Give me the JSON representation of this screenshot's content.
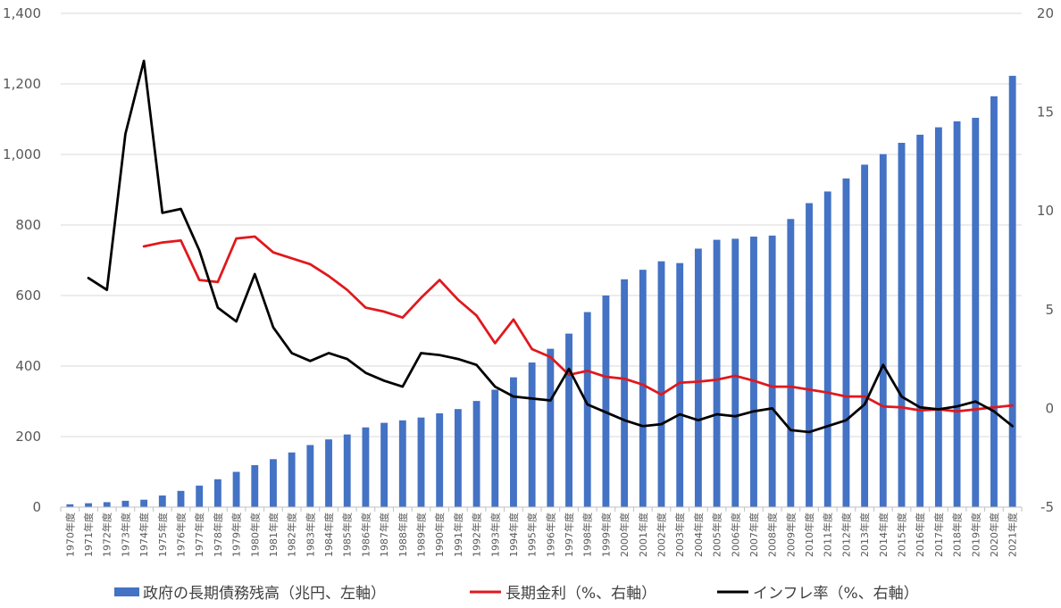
{
  "chart_data": {
    "type": "bar",
    "categories": [
      "1970年度",
      "1971年度",
      "1972年度",
      "1973年度",
      "1974年度",
      "1975年度",
      "1976年度",
      "1977年度",
      "1978年度",
      "1979年度",
      "1980年度",
      "1981年度",
      "1982年度",
      "1983年度",
      "1984年度",
      "1985年度",
      "1986年度",
      "1987年度",
      "1988年度",
      "1989年度",
      "1990年度",
      "1991年度",
      "1992年度",
      "1993年度",
      "1994年度",
      "1995年度",
      "1996年度",
      "1997年度",
      "1998年度",
      "1999年度",
      "2000年度",
      "2001年度",
      "2002年度",
      "2003年度",
      "2004年度",
      "2005年度",
      "2006年度",
      "2007年度",
      "2008年度",
      "2009年度",
      "2010年度",
      "2011年度",
      "2012年度",
      "2013年度",
      "2014年度",
      "2015年度",
      "2016年度",
      "2017年度",
      "2018年度",
      "2019年度",
      "2020年度",
      "2021年度"
    ],
    "left_axis": {
      "ylim": [
        0,
        1400
      ],
      "ticks": [
        "0",
        "200",
        "400",
        "600",
        "800",
        "1,000",
        "1,200",
        "1,400"
      ]
    },
    "right_axis": {
      "ylim": [
        -5,
        20
      ],
      "ticks": [
        "-5",
        "0",
        "5",
        "10",
        "15",
        "20"
      ]
    },
    "grid": true,
    "legend_position": "bottom",
    "series": [
      {
        "name": "政府の長期債務残高（兆円、左軸）",
        "type": "bar",
        "axis": "left",
        "color": "#4472C4",
        "values": [
          8,
          11,
          14,
          18,
          21,
          33,
          46,
          61,
          79,
          100,
          119,
          136,
          155,
          176,
          192,
          206,
          226,
          239,
          246,
          254,
          266,
          278,
          301,
          333,
          368,
          410,
          449,
          492,
          553,
          600,
          646,
          673,
          697,
          692,
          733,
          758,
          761,
          767,
          770,
          817,
          862,
          895,
          932,
          971,
          1001,
          1033,
          1056,
          1077,
          1094,
          1104,
          1165,
          1223
        ]
      },
      {
        "name": "長期金利（%、右軸）",
        "type": "line",
        "axis": "right",
        "color": "#E0181D",
        "values": [
          null,
          null,
          null,
          null,
          8.2,
          8.4,
          8.5,
          6.5,
          6.4,
          8.6,
          8.7,
          7.9,
          7.6,
          7.3,
          6.7,
          6.0,
          5.1,
          4.9,
          4.6,
          5.6,
          6.5,
          5.5,
          4.7,
          3.3,
          4.5,
          3.0,
          2.6,
          1.7,
          1.9,
          1.6,
          1.5,
          1.2,
          0.7,
          1.3,
          1.35,
          1.45,
          1.65,
          1.4,
          1.1,
          1.1,
          0.95,
          0.8,
          0.6,
          0.6,
          0.1,
          0.05,
          -0.1,
          -0.05,
          -0.15,
          -0.05,
          0.05,
          0.15
        ]
      },
      {
        "name": "インフレ率（%、右軸）",
        "type": "line",
        "axis": "right",
        "color": "#000000",
        "values": [
          null,
          6.6,
          6.0,
          13.9,
          17.6,
          9.9,
          10.1,
          8.0,
          5.1,
          4.4,
          6.8,
          4.1,
          2.8,
          2.4,
          2.8,
          2.5,
          1.8,
          1.4,
          1.1,
          2.8,
          2.7,
          2.5,
          2.2,
          1.1,
          0.6,
          0.5,
          0.4,
          2.0,
          0.2,
          -0.2,
          -0.6,
          -0.9,
          -0.8,
          -0.3,
          -0.6,
          -0.3,
          -0.4,
          -0.15,
          0.0,
          -1.1,
          -1.2,
          -0.9,
          -0.6,
          0.2,
          2.2,
          0.6,
          0.05,
          -0.05,
          0.1,
          0.35,
          -0.15,
          -0.9
        ]
      }
    ]
  }
}
